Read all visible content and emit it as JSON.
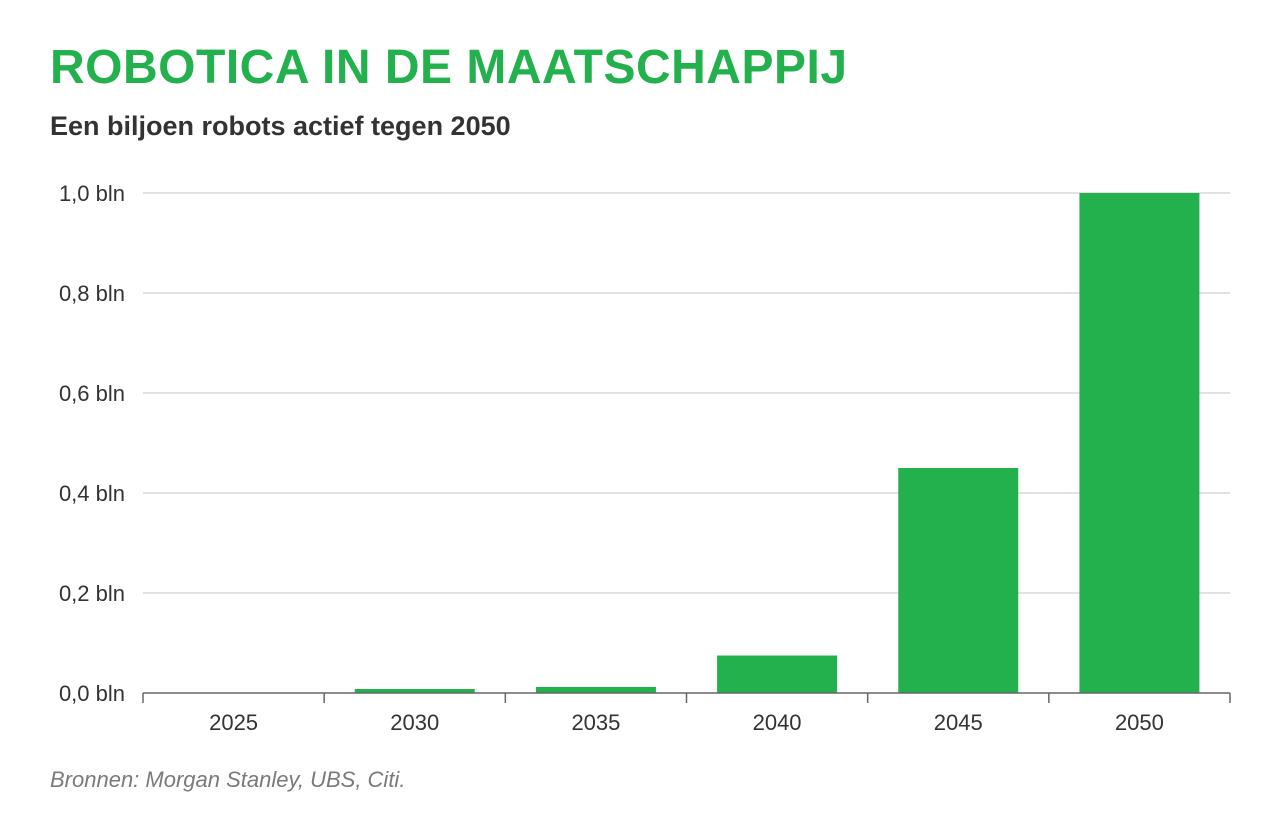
{
  "header": {
    "title": "ROBOTICA IN DE MAATSCHAPPIJ",
    "subtitle": "Een biljoen robots actief tegen 2050"
  },
  "footer": {
    "source": "Bronnen: Morgan Stanley, UBS, Citi."
  },
  "colors": {
    "accent": "#22b14c",
    "grid": "#d9d9d9",
    "axis": "#666666",
    "text": "#333333"
  },
  "chart_data": {
    "type": "bar",
    "title": "ROBOTICA IN DE MAATSCHAPPIJ",
    "subtitle": "Een biljoen robots actief tegen 2050",
    "xlabel": "",
    "ylabel": "",
    "categories": [
      "2025",
      "2030",
      "2035",
      "2040",
      "2045",
      "2050"
    ],
    "values": [
      0.001,
      0.008,
      0.012,
      0.075,
      0.45,
      1.0
    ],
    "ylim": [
      0,
      1.0
    ],
    "yticks": [
      0,
      0.2,
      0.4,
      0.6,
      0.8,
      1.0
    ],
    "ytick_labels": [
      "0,0 bln",
      "0,2 bln",
      "0,4 bln",
      "0,6 bln",
      "0,8 bln",
      "1,0 bln"
    ],
    "grid": true,
    "legend": "none"
  }
}
